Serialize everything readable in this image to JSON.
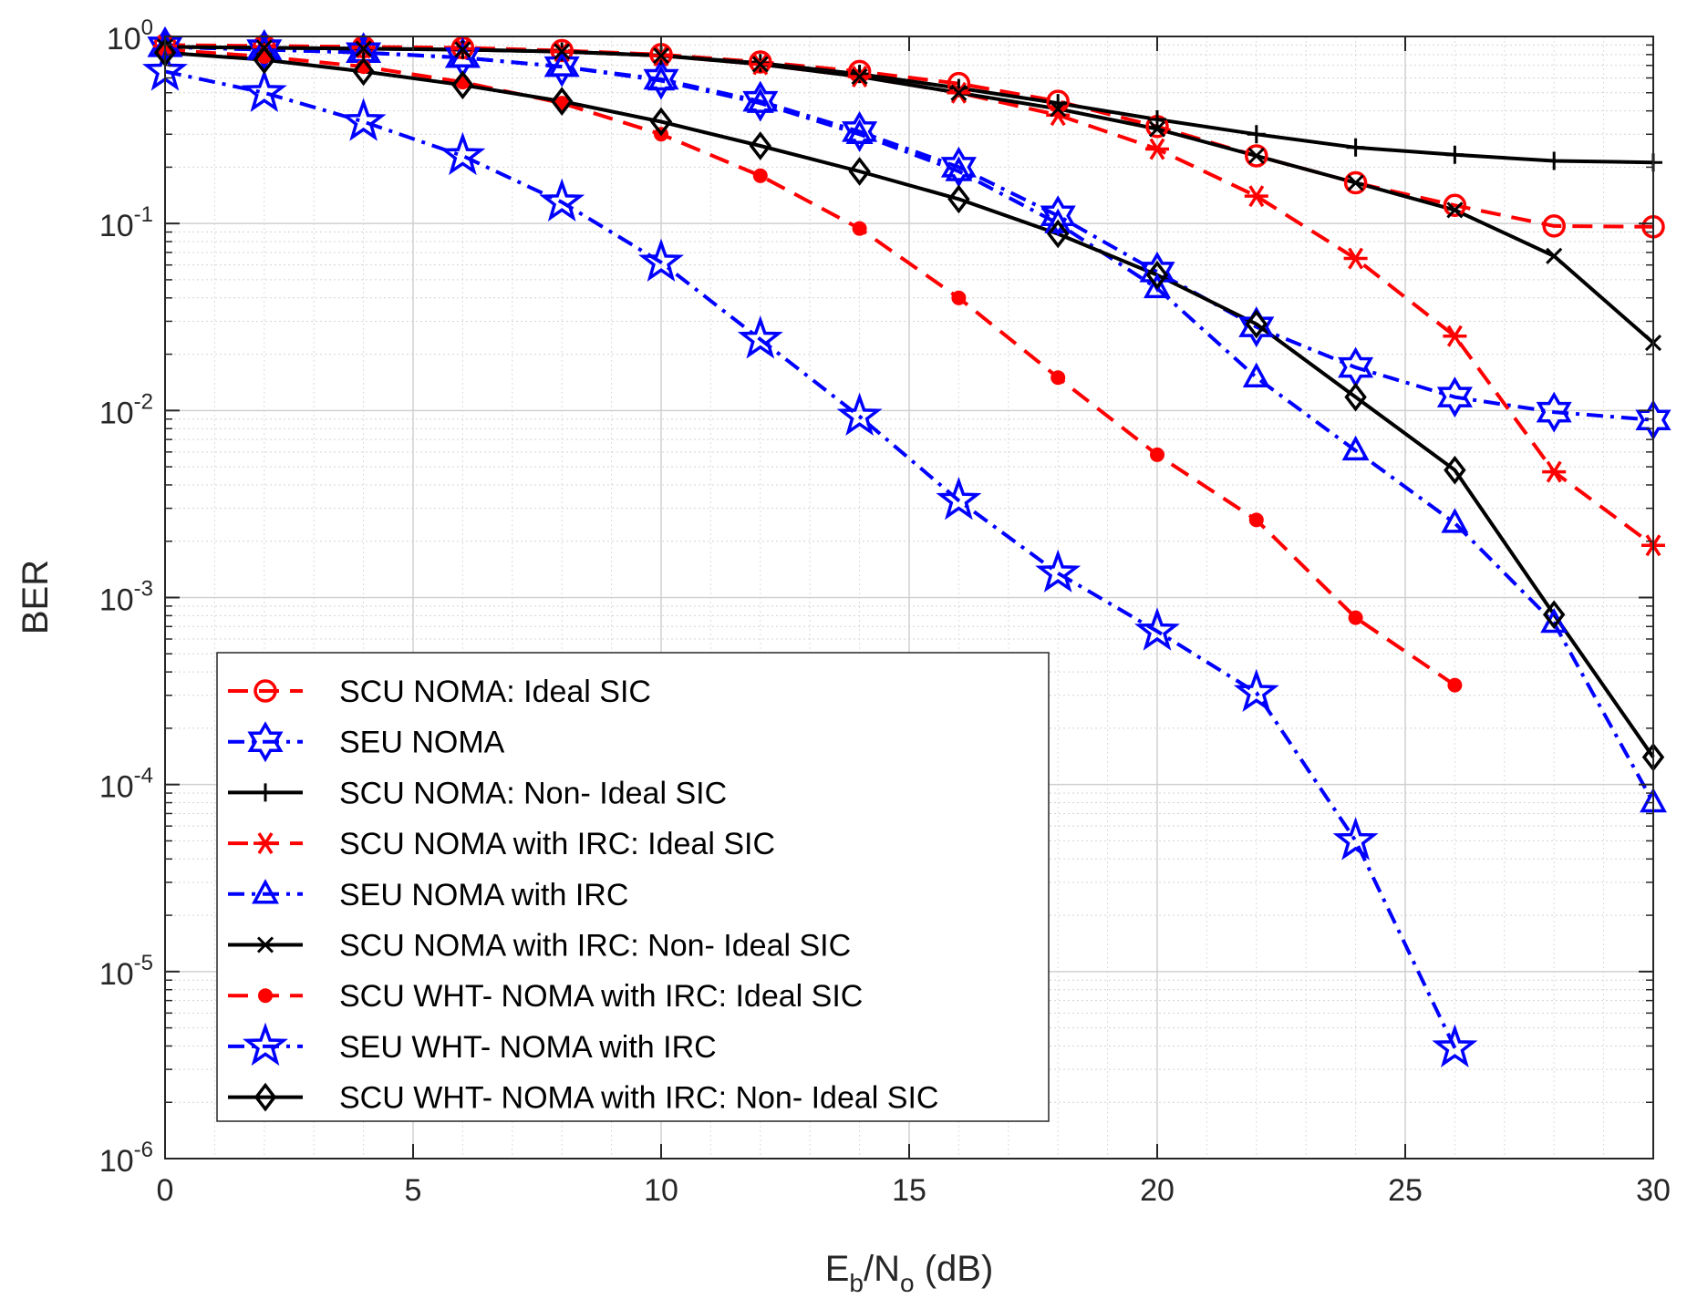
{
  "chart_data": {
    "type": "line",
    "title": "",
    "xlabel": "E_b/N_o (dB)",
    "xlabel_parts": {
      "main1": "E",
      "sub1": "b",
      "main2": "/N",
      "sub2": "o",
      "tail": " (dB)"
    },
    "ylabel": "BER",
    "xscale": "linear",
    "yscale": "log",
    "xlim": [
      0,
      30
    ],
    "ylim": [
      1e-06,
      1
    ],
    "grid": true,
    "minor_grid": true,
    "legend_position": "bottom-left",
    "x_ticks": [
      0,
      5,
      10,
      15,
      20,
      25,
      30
    ],
    "x_tick_labels": [
      "0",
      "5",
      "10",
      "15",
      "20",
      "25",
      "30"
    ],
    "y_ticks": [
      {
        "value": 1,
        "base": "10",
        "exp": "0"
      },
      {
        "value": 0.1,
        "base": "10",
        "exp": "-1"
      },
      {
        "value": 0.01,
        "base": "10",
        "exp": "-2"
      },
      {
        "value": 0.001,
        "base": "10",
        "exp": "-3"
      },
      {
        "value": 0.0001,
        "base": "10",
        "exp": "-4"
      },
      {
        "value": 1e-05,
        "base": "10",
        "exp": "-5"
      },
      {
        "value": 1e-06,
        "base": "10",
        "exp": "-6"
      }
    ],
    "series": [
      {
        "name": "SCU NOMA: Ideal SIC",
        "color": "#ff0000",
        "dash": "dashed",
        "marker": "circle",
        "x": [
          0,
          2,
          4,
          6,
          8,
          10,
          12,
          14,
          16,
          18,
          20,
          22,
          24,
          26,
          28,
          30
        ],
        "y": [
          0.9,
          0.89,
          0.88,
          0.87,
          0.84,
          0.8,
          0.73,
          0.65,
          0.56,
          0.45,
          0.33,
          0.23,
          0.165,
          0.125,
          0.097,
          0.096
        ]
      },
      {
        "name": "SEU NOMA",
        "color": "#0000ff",
        "dash": "dashdot",
        "marker": "hexagram",
        "x": [
          0,
          2,
          4,
          6,
          8,
          10,
          12,
          14,
          16,
          18,
          20,
          22,
          24,
          26,
          28,
          30
        ],
        "y": [
          0.88,
          0.85,
          0.82,
          0.77,
          0.69,
          0.59,
          0.45,
          0.31,
          0.2,
          0.11,
          0.055,
          0.028,
          0.017,
          0.0118,
          0.0098,
          0.0089
        ]
      },
      {
        "name": "SCU NOMA: Non- Ideal SIC",
        "color": "#000000",
        "dash": "solid",
        "marker": "plus",
        "x": [
          0,
          2,
          4,
          6,
          8,
          10,
          12,
          14,
          16,
          18,
          20,
          22,
          24,
          26,
          28,
          30
        ],
        "y": [
          0.88,
          0.87,
          0.86,
          0.85,
          0.83,
          0.79,
          0.72,
          0.63,
          0.53,
          0.44,
          0.36,
          0.3,
          0.255,
          0.233,
          0.216,
          0.212
        ]
      },
      {
        "name": "SCU NOMA with IRC: Ideal SIC",
        "color": "#ff0000",
        "dash": "dashed",
        "marker": "asterisk",
        "x": [
          0,
          2,
          4,
          6,
          8,
          10,
          12,
          14,
          16,
          18,
          20,
          22,
          24,
          26,
          28,
          30
        ],
        "y": [
          0.89,
          0.88,
          0.87,
          0.86,
          0.83,
          0.79,
          0.71,
          0.61,
          0.5,
          0.38,
          0.25,
          0.14,
          0.065,
          0.025,
          0.0047,
          0.0019
        ]
      },
      {
        "name": "SEU NOMA with IRC",
        "color": "#0000ff",
        "dash": "dashdot",
        "marker": "triangle",
        "x": [
          0,
          2,
          4,
          6,
          8,
          10,
          12,
          14,
          16,
          18,
          20,
          22,
          24,
          26,
          28,
          30
        ],
        "y": [
          0.88,
          0.85,
          0.82,
          0.77,
          0.69,
          0.58,
          0.44,
          0.3,
          0.19,
          0.1,
          0.045,
          0.015,
          0.0061,
          0.0025,
          0.00073,
          8e-05
        ]
      },
      {
        "name": "SCU NOMA with IRC: Non- Ideal SIC",
        "color": "#000000",
        "dash": "solid",
        "marker": "cross",
        "x": [
          0,
          2,
          4,
          6,
          8,
          10,
          12,
          14,
          16,
          18,
          20,
          22,
          24,
          26,
          28,
          30
        ],
        "y": [
          0.88,
          0.87,
          0.86,
          0.85,
          0.83,
          0.79,
          0.71,
          0.61,
          0.5,
          0.41,
          0.32,
          0.23,
          0.165,
          0.118,
          0.067,
          0.023
        ]
      },
      {
        "name": "SCU WHT- NOMA with IRC: Ideal SIC",
        "color": "#ff0000",
        "dash": "dashed",
        "marker": "dot",
        "x": [
          0,
          2,
          4,
          6,
          8,
          10,
          12,
          14,
          16,
          18,
          20,
          22,
          24,
          26
        ],
        "y": [
          0.85,
          0.78,
          0.69,
          0.57,
          0.44,
          0.3,
          0.18,
          0.094,
          0.04,
          0.015,
          0.0058,
          0.0026,
          0.00078,
          0.00034
        ]
      },
      {
        "name": "SEU WHT- NOMA with IRC",
        "color": "#0000ff",
        "dash": "dashdot",
        "marker": "pentagram",
        "x": [
          0,
          2,
          4,
          6,
          8,
          10,
          12,
          14,
          16,
          18,
          20,
          22,
          24,
          26
        ],
        "y": [
          0.65,
          0.5,
          0.35,
          0.23,
          0.13,
          0.062,
          0.024,
          0.0093,
          0.0033,
          0.00135,
          0.00066,
          0.00031,
          5e-05,
          3.9e-06
        ]
      },
      {
        "name": "SCU WHT- NOMA with IRC: Non- Ideal SIC",
        "color": "#000000",
        "dash": "solid",
        "marker": "diamond",
        "x": [
          0,
          2,
          4,
          6,
          8,
          10,
          12,
          14,
          16,
          18,
          20,
          22,
          24,
          26,
          28,
          30
        ],
        "y": [
          0.82,
          0.75,
          0.65,
          0.55,
          0.45,
          0.35,
          0.26,
          0.19,
          0.135,
          0.088,
          0.053,
          0.029,
          0.0118,
          0.0048,
          0.00081,
          0.00014
        ]
      }
    ]
  }
}
